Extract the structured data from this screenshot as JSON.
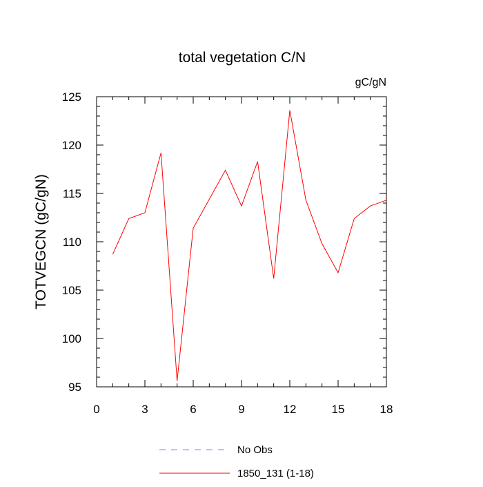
{
  "chart_data": {
    "type": "line",
    "title": "total vegetation C/N",
    "units_label": "gC/gN",
    "xlabel": "",
    "ylabel": "TOTVEGCN  (gC/gN)",
    "xlim": [
      0,
      18
    ],
    "ylim": [
      95,
      125
    ],
    "x_ticks": [
      0,
      3,
      6,
      9,
      12,
      15,
      18
    ],
    "y_ticks": [
      95,
      100,
      105,
      110,
      115,
      120,
      125
    ],
    "grid": false,
    "legend_placement": "bottom",
    "legend": [
      {
        "name": "No Obs",
        "color": "#8080ff",
        "dashed": true
      },
      {
        "name": "1850_131 (1-18)",
        "color": "#ff0000",
        "dashed": false
      }
    ],
    "series": [
      {
        "name": "1850_131 (1-18)",
        "color": "#ff0000",
        "x": [
          1,
          2,
          3,
          4,
          5,
          6,
          7,
          8,
          9,
          10,
          11,
          12,
          13,
          14,
          15,
          16,
          17,
          18
        ],
        "values": [
          108.7,
          112.4,
          113.0,
          119.2,
          95.6,
          111.4,
          114.4,
          117.4,
          113.7,
          118.3,
          106.2,
          123.6,
          114.3,
          109.8,
          106.8,
          112.4,
          113.7,
          114.3
        ]
      }
    ]
  }
}
